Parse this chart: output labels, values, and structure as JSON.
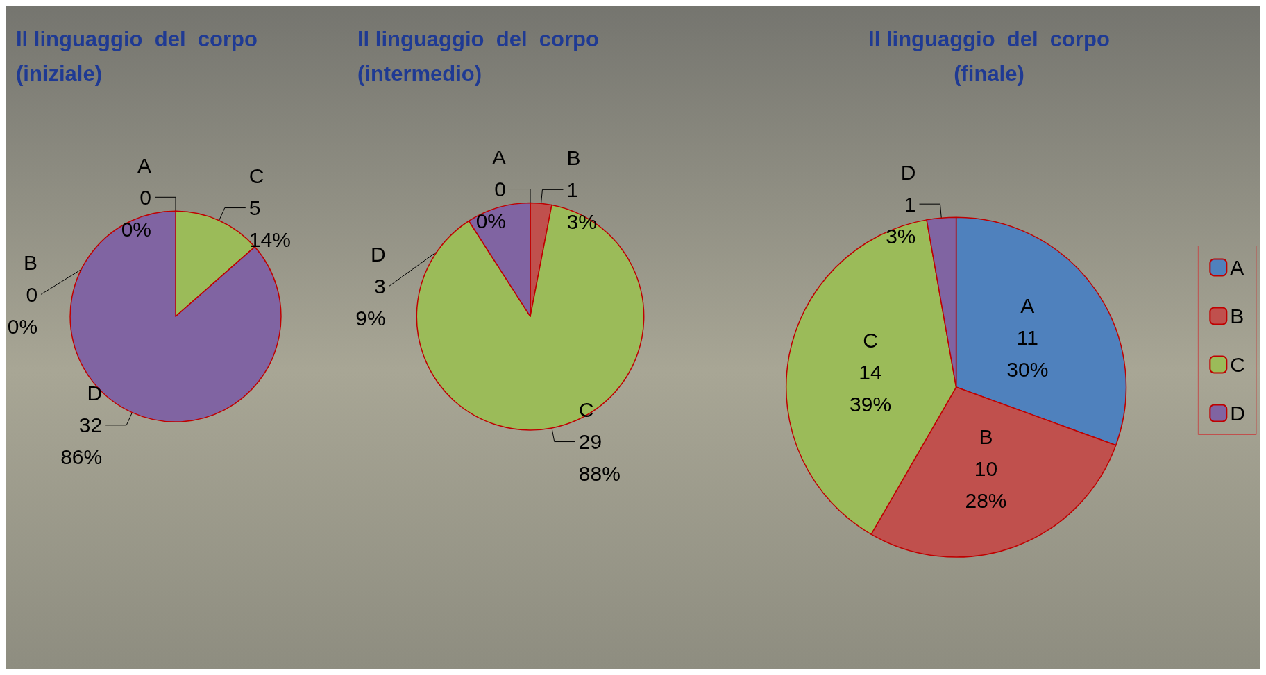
{
  "chart_data": [
    {
      "type": "pie",
      "title": "Il linguaggio  del  corpo\n(iniziale)",
      "categories": [
        "A",
        "B",
        "C",
        "D"
      ],
      "values": [
        0,
        0,
        5,
        32
      ],
      "colors": [
        "#4f81bd",
        "#c0504d",
        "#9bbb59",
        "#8064a2"
      ],
      "value_labels": [
        "0\n0%",
        "0\n0%",
        "5\n14%",
        "32\n86%"
      ],
      "legend": false
    },
    {
      "type": "pie",
      "title": "Il linguaggio  del  corpo\n(intermedio)",
      "categories": [
        "A",
        "B",
        "C",
        "D"
      ],
      "values": [
        0,
        1,
        29,
        3
      ],
      "colors": [
        "#4f81bd",
        "#c0504d",
        "#9bbb59",
        "#8064a2"
      ],
      "value_labels": [
        "0\n0%",
        "1\n3%",
        "29\n88%",
        "3\n9%"
      ],
      "legend": false
    },
    {
      "type": "pie",
      "title": "Il linguaggio  del  corpo\n(finale)",
      "categories": [
        "A",
        "B",
        "C",
        "D"
      ],
      "values": [
        11,
        10,
        14,
        1
      ],
      "colors": [
        "#4f81bd",
        "#c0504d",
        "#9bbb59",
        "#8064a2"
      ],
      "value_labels": [
        "11\n30%",
        "10\n28%",
        "14\n39%",
        "1\n3%"
      ],
      "legend": "right"
    }
  ]
}
